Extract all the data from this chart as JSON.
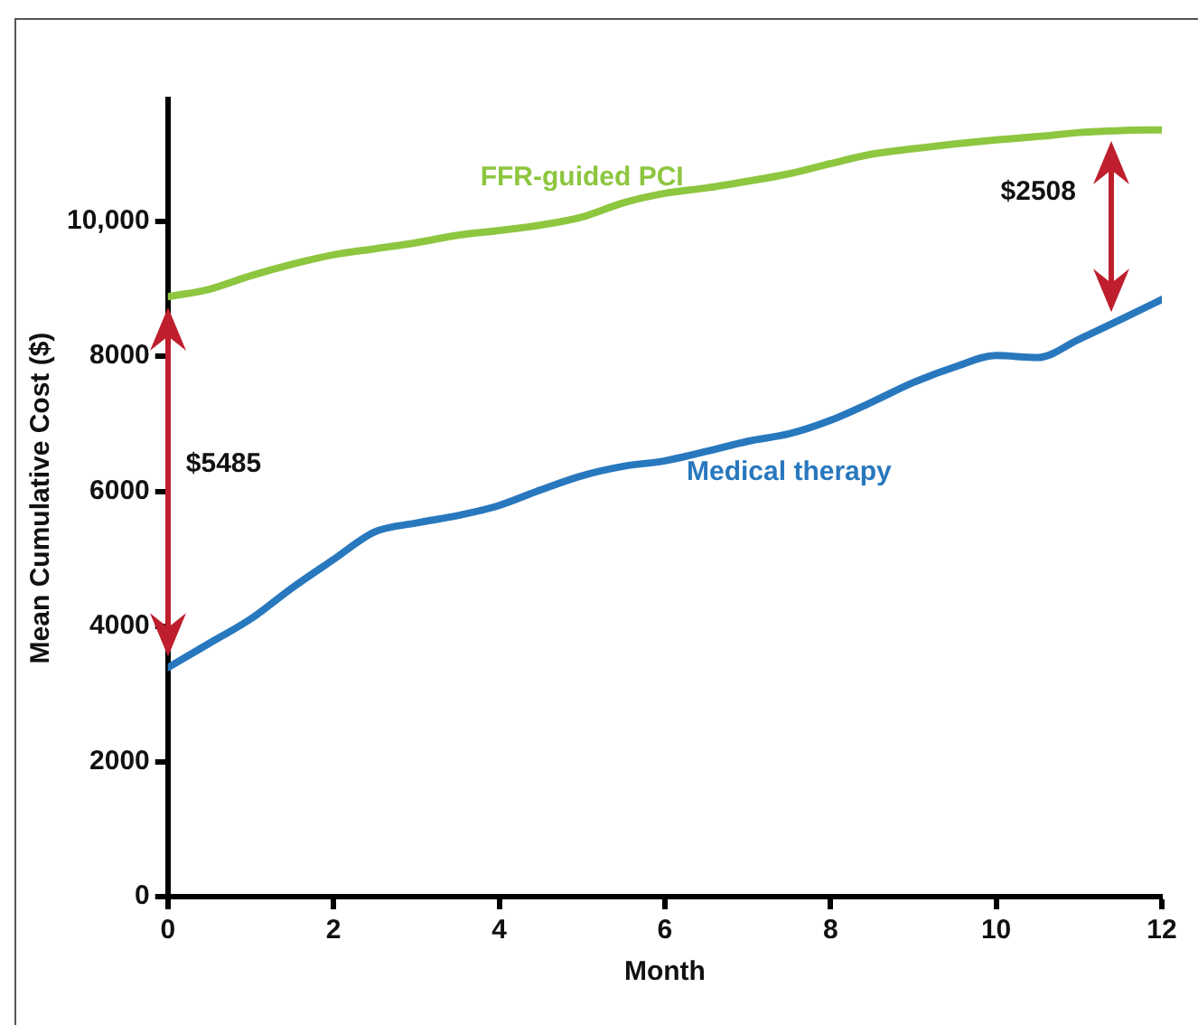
{
  "chart_data": {
    "type": "line",
    "xlabel": "Month",
    "ylabel": "Mean Cumulative Cost ($)",
    "x": [
      0,
      0.5,
      1,
      1.5,
      2,
      2.5,
      3,
      3.5,
      4,
      4.5,
      5,
      5.5,
      6,
      6.5,
      7,
      7.5,
      8,
      8.5,
      9,
      9.5,
      10,
      10.5,
      11,
      11.5,
      12
    ],
    "series": [
      {
        "name": "FFR-guided PCI",
        "color": "#8dc63f",
        "values": [
          8880,
          8990,
          9190,
          9360,
          9500,
          9590,
          9680,
          9790,
          9860,
          9940,
          10060,
          10270,
          10410,
          10490,
          10590,
          10700,
          10850,
          10990,
          11070,
          11140,
          11200,
          11250,
          11310,
          11340,
          11350
        ]
      },
      {
        "name": "Medical therapy",
        "color": "#2878be",
        "values": [
          3390,
          3750,
          4110,
          4570,
          4990,
          5400,
          5530,
          5640,
          5790,
          6020,
          6230,
          6370,
          6450,
          6590,
          6740,
          6850,
          7050,
          7320,
          7610,
          7840,
          8010,
          7980,
          8250,
          8540,
          8840
        ]
      }
    ],
    "xlim": [
      0,
      12
    ],
    "xticks": [
      0,
      2,
      4,
      6,
      8,
      10,
      12
    ],
    "ylim": [
      0,
      11800
    ],
    "yticks": [
      0,
      2000,
      4000,
      6000,
      8000,
      {
        "value": 10000,
        "label": "10,000"
      }
    ],
    "grid": false,
    "legend": false,
    "marker": "none",
    "line_style": "solid",
    "annotations": [
      "$5485",
      "$2508"
    ]
  }
}
